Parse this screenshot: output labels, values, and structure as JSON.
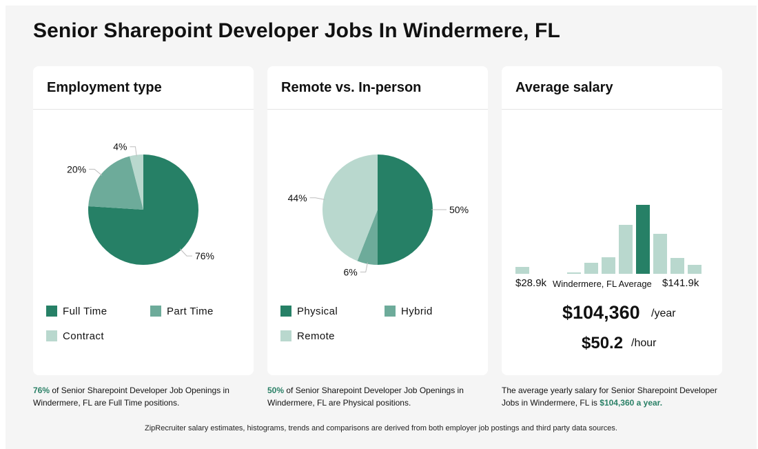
{
  "title": "Senior Sharepoint Developer Jobs In Windermere, FL",
  "colors": {
    "dark": "#268066",
    "medium": "#6dab9a",
    "light": "#b9d8ce"
  },
  "employment": {
    "title": "Employment type",
    "legend": [
      "Full Time",
      "Part Time",
      "Contract"
    ],
    "caption_pct": "76%",
    "caption_text": " of Senior Sharepoint Developer Job Openings in Windermere, FL are Full Time positions."
  },
  "remote": {
    "title": "Remote vs. In-person",
    "legend": [
      "Physical",
      "Hybrid",
      "Remote"
    ],
    "caption_pct": "50%",
    "caption_text": " of Senior Sharepoint Developer Job Openings in Windermere, FL are Physical positions."
  },
  "salary": {
    "title": "Average salary",
    "min_label": "$28.9k",
    "avg_label": "Windermere, FL Average",
    "max_label": "$141.9k",
    "yearly": "$104,360",
    "yearly_unit": "/year",
    "hourly": "$50.2",
    "hourly_unit": "/hour",
    "caption_text": "The average yearly salary for Senior Sharepoint Developer Jobs in Windermere, FL is ",
    "caption_value": "$104,360 a year."
  },
  "footer": "ZipRecruiter salary estimates, histograms, trends and comparisons are derived from both employer job postings and third party data sources.",
  "chart_data": [
    {
      "type": "pie",
      "title": "Employment type",
      "slices": [
        {
          "label": "Full Time",
          "value": 76,
          "display": "76%",
          "color": "#268066"
        },
        {
          "label": "Part Time",
          "value": 20,
          "display": "20%",
          "color": "#6dab9a"
        },
        {
          "label": "Contract",
          "value": 4,
          "display": "4%",
          "color": "#b9d8ce"
        }
      ]
    },
    {
      "type": "pie",
      "title": "Remote vs. In-person",
      "slices": [
        {
          "label": "Physical",
          "value": 50,
          "display": "50%",
          "color": "#268066"
        },
        {
          "label": "Hybrid",
          "value": 6,
          "display": "6%",
          "color": "#6dab9a"
        },
        {
          "label": "Remote",
          "value": 44,
          "display": "44%",
          "color": "#b9d8ce"
        }
      ]
    },
    {
      "type": "bar",
      "title": "Average salary",
      "xlim_labels": [
        "$28.9k",
        "$141.9k"
      ],
      "values": [
        10,
        0,
        0,
        2,
        16,
        24,
        71,
        100,
        58,
        23,
        13
      ],
      "highlight_index": 7
    }
  ]
}
